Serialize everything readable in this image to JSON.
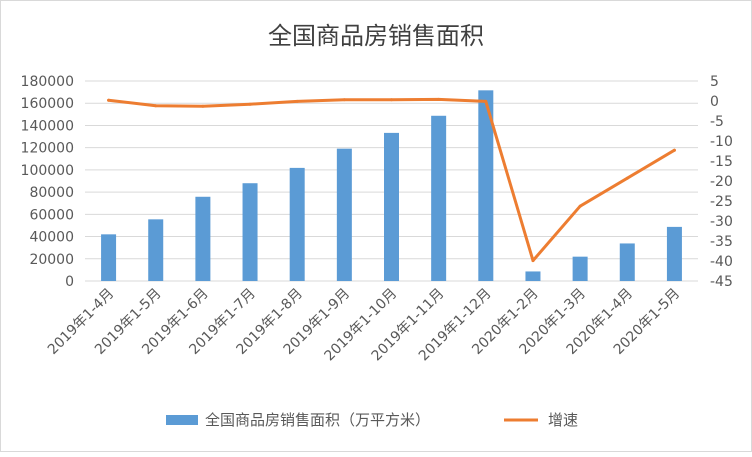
{
  "chart_data": {
    "type": "bar",
    "title": "全国商品房销售面积",
    "categories": [
      "2019年1-4月",
      "2019年1-5月",
      "2019年1-6月",
      "2019年1-7月",
      "2019年1-8月",
      "2019年1-9月",
      "2019年1-10月",
      "2019年1-11月",
      "2019年1-12月",
      "2020年1-2月",
      "2020年1-3月",
      "2020年1-4月",
      "2020年1-5月"
    ],
    "series": [
      {
        "name": "全国商品房销售面积（万平方米）",
        "type": "bar",
        "axis": "left",
        "color": "#5B9BD5",
        "values": [
          42000,
          55500,
          75800,
          88000,
          101800,
          119100,
          133300,
          148700,
          171600,
          8600,
          21900,
          33800,
          48700
        ]
      },
      {
        "name": "增速",
        "type": "line",
        "axis": "right",
        "color": "#ED7D31",
        "values": [
          0.2,
          -1.2,
          -1.3,
          -0.8,
          -0.1,
          0.3,
          0.3,
          0.4,
          -0.1,
          -39.9,
          -26.3,
          -19.3,
          -12.3
        ]
      }
    ],
    "y_left": {
      "min": 0,
      "max": 180000,
      "step": 20000,
      "ticks": [
        "0",
        "20000",
        "40000",
        "60000",
        "80000",
        "100000",
        "120000",
        "140000",
        "160000",
        "180000"
      ]
    },
    "y_right": {
      "min": -45,
      "max": 5,
      "step": 5,
      "ticks": [
        "-45",
        "-40",
        "-35",
        "-30",
        "-25",
        "-20",
        "-15",
        "-10",
        "-5",
        "0",
        "5"
      ]
    },
    "grid": true,
    "legend_position": "bottom"
  }
}
